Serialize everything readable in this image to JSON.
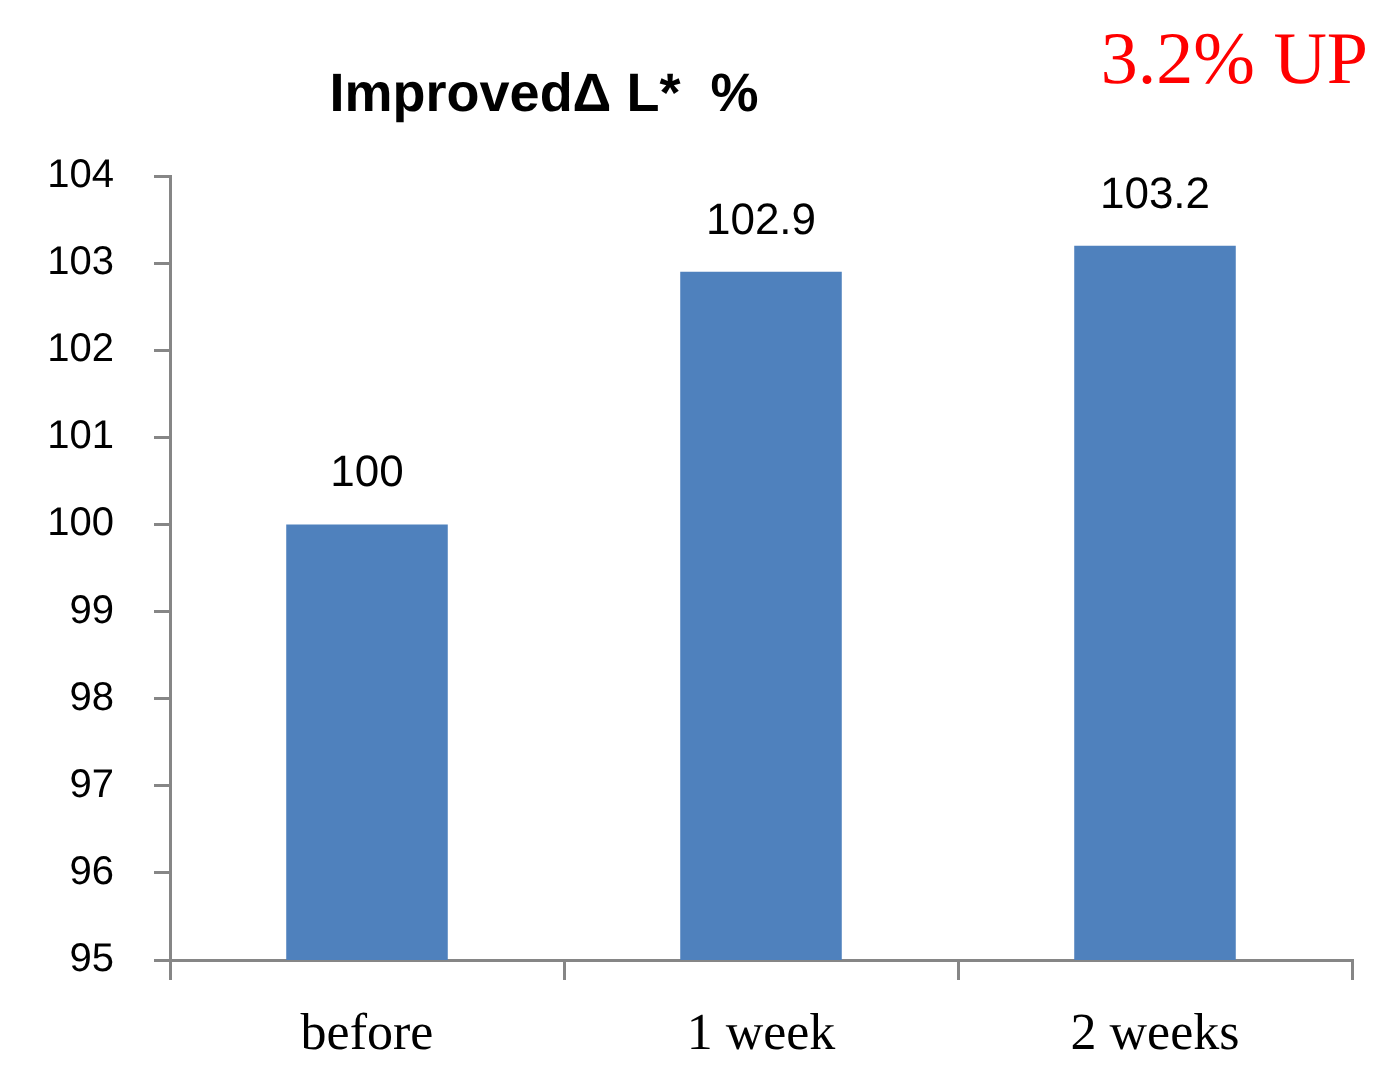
{
  "chart_data": {
    "type": "bar",
    "title": "ImprovedΔ L*  %",
    "categories": [
      "before",
      "1 week",
      "2 weeks"
    ],
    "values": [
      100,
      102.9,
      103.2
    ],
    "color": "#4f81bd",
    "ylim": [
      95,
      104
    ],
    "yticks": [
      95,
      96,
      97,
      98,
      99,
      100,
      101,
      102,
      103,
      104
    ],
    "data_labels": true,
    "annotations": [
      "3.2% UP"
    ]
  }
}
